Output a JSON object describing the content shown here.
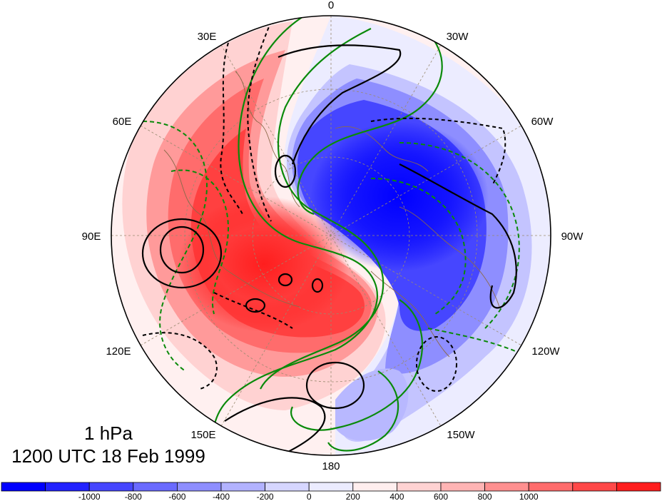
{
  "figure": {
    "title_level": "1 hPa",
    "title_time": "1200 UTC 18 Feb 1999"
  },
  "map": {
    "projection": "polar-stereographic",
    "longitude_labels": {
      "top": "0",
      "upper_left_1": "30E",
      "upper_right_1": "30W",
      "upper_left_2": "60E",
      "upper_right_2": "60W",
      "left": "90E",
      "right": "90W",
      "lower_left_2": "120E",
      "lower_right_2": "120W",
      "lower_left_1": "150E",
      "lower_right_1": "150W",
      "bottom": "180"
    }
  },
  "colorbar": {
    "tick_labels": [
      "-1000",
      "-800",
      "-600",
      "-400",
      "-200",
      "0",
      "200",
      "400",
      "600",
      "800",
      "1000"
    ],
    "colors": [
      "#0000ff",
      "#2222ff",
      "#4646ff",
      "#6a6aff",
      "#8e8eff",
      "#b2b2ff",
      "#d6d6ff",
      "#ececff",
      "#ffeeee",
      "#ffd2d2",
      "#ffb4b4",
      "#ff9090",
      "#ff6c6c",
      "#ff4848",
      "#ff1e1e"
    ]
  },
  "contour_styles": {
    "positive_black": "solid black",
    "negative_black": "dashed black",
    "positive_green": "solid green",
    "negative_green": "dashed green"
  }
}
